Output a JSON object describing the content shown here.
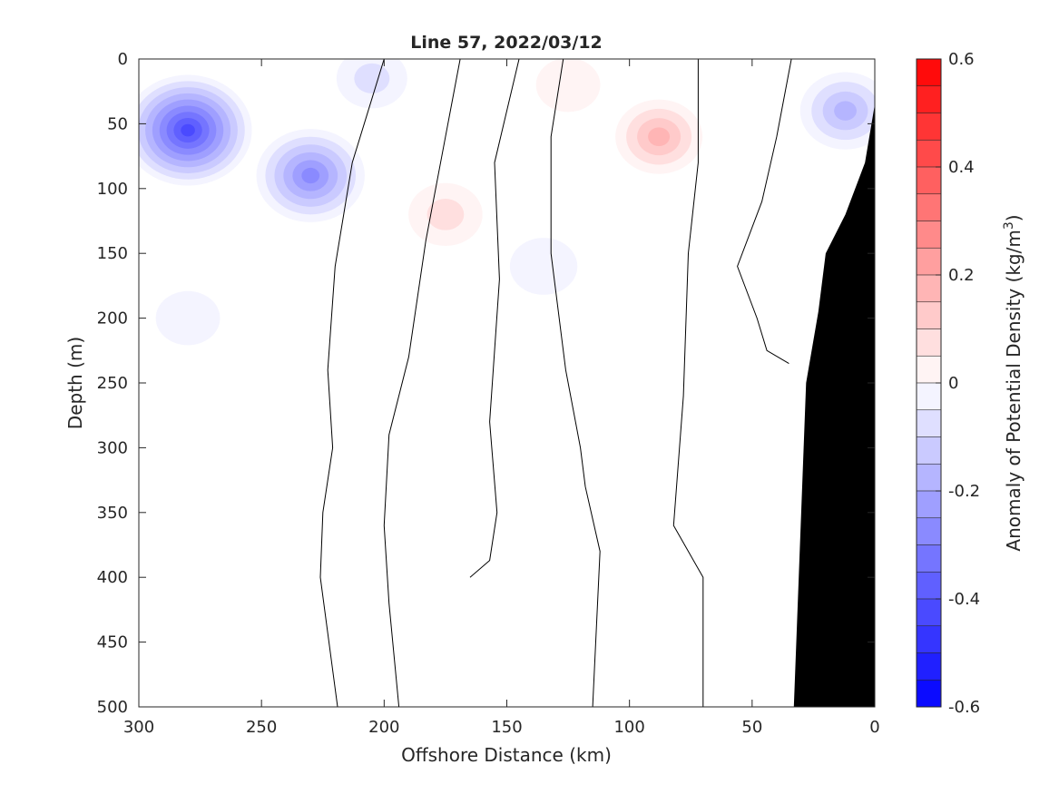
{
  "chart_data": {
    "type": "heatmap",
    "title": "Line 57, 2022/03/12",
    "xlabel": "Offshore Distance (km)",
    "ylabel": "Depth (m)",
    "colorbar_label": "Anomaly of Potential Density (kg/m",
    "colorbar_label_sup": "3",
    "colorbar_label_close": ")",
    "x_reversed": true,
    "y_reversed": true,
    "xlim": [
      300,
      0
    ],
    "ylim": [
      0,
      500
    ],
    "x_ticks": [
      300,
      250,
      200,
      150,
      100,
      50,
      0
    ],
    "x_tick_labels": [
      "300",
      "250",
      "200",
      "150",
      "100",
      "50",
      "0"
    ],
    "y_ticks": [
      0,
      50,
      100,
      150,
      200,
      250,
      300,
      350,
      400,
      450,
      500
    ],
    "y_tick_labels": [
      "0",
      "50",
      "100",
      "150",
      "200",
      "250",
      "300",
      "350",
      "400",
      "450",
      "500"
    ],
    "clim": [
      -0.6,
      0.6
    ],
    "colorbar_ticks": [
      0.6,
      0.4,
      0.2,
      0,
      -0.2,
      -0.4,
      -0.6
    ],
    "colorbar_tick_labels": [
      "0.6",
      "0.4",
      "0.2",
      "0",
      "-0.2",
      "-0.4",
      "-0.6"
    ],
    "colorbar_levels": 24,
    "colors": {
      "positive": "#ff0000",
      "negative": "#0000ff",
      "zero": "#ffffff",
      "bathymetry": "#000000",
      "contour": "#000000"
    },
    "anomaly_features": [
      {
        "kind": "negative",
        "x": 280,
        "y": 55,
        "peak": -0.45
      },
      {
        "kind": "negative",
        "x": 230,
        "y": 90,
        "peak": -0.33
      },
      {
        "kind": "negative",
        "x": 205,
        "y": 15,
        "peak": -0.1
      },
      {
        "kind": "negative",
        "x": 12,
        "y": 40,
        "peak": -0.22
      },
      {
        "kind": "negative",
        "x": 135,
        "y": 160,
        "peak": -0.08
      },
      {
        "kind": "negative",
        "x": 280,
        "y": 200,
        "peak": -0.06
      },
      {
        "kind": "positive",
        "x": 88,
        "y": 60,
        "peak": 0.2
      },
      {
        "kind": "positive",
        "x": 125,
        "y": 20,
        "peak": 0.06
      },
      {
        "kind": "positive",
        "x": 175,
        "y": 120,
        "peak": 0.12
      }
    ],
    "zero_contours": [
      [
        [
          200,
          0
        ],
        [
          213,
          80
        ],
        [
          220,
          160
        ],
        [
          223,
          240
        ],
        [
          221,
          300
        ],
        [
          225,
          350
        ],
        [
          226,
          400
        ],
        [
          219,
          500
        ]
      ],
      [
        [
          169,
          0
        ],
        [
          175,
          60
        ],
        [
          183,
          140
        ],
        [
          190,
          230
        ],
        [
          198,
          290
        ],
        [
          200,
          360
        ],
        [
          198,
          420
        ],
        [
          194,
          500
        ]
      ],
      [
        [
          145,
          0
        ],
        [
          155,
          80
        ],
        [
          153,
          170
        ],
        [
          157,
          280
        ],
        [
          154,
          350
        ],
        [
          157,
          387
        ],
        [
          165,
          400
        ]
      ],
      [
        [
          127,
          0
        ],
        [
          132,
          60
        ],
        [
          132,
          150
        ],
        [
          126,
          240
        ],
        [
          120,
          300
        ],
        [
          118,
          330
        ],
        [
          112,
          380
        ],
        [
          115,
          500
        ]
      ],
      [
        [
          72,
          0
        ],
        [
          72,
          80
        ],
        [
          76,
          150
        ],
        [
          78,
          260
        ],
        [
          82,
          360
        ],
        [
          70,
          400
        ],
        [
          70,
          500
        ]
      ],
      [
        [
          34,
          0
        ],
        [
          40,
          60
        ],
        [
          46,
          110
        ],
        [
          56,
          160
        ],
        [
          48,
          200
        ],
        [
          44,
          225
        ],
        [
          35,
          235
        ]
      ]
    ],
    "bathymetry_profile": [
      [
        33,
        500
      ],
      [
        31,
        400
      ],
      [
        29,
        300
      ],
      [
        28,
        250
      ],
      [
        23,
        195
      ],
      [
        20,
        150
      ],
      [
        12,
        120
      ],
      [
        4,
        80
      ],
      [
        0,
        35
      ]
    ]
  }
}
